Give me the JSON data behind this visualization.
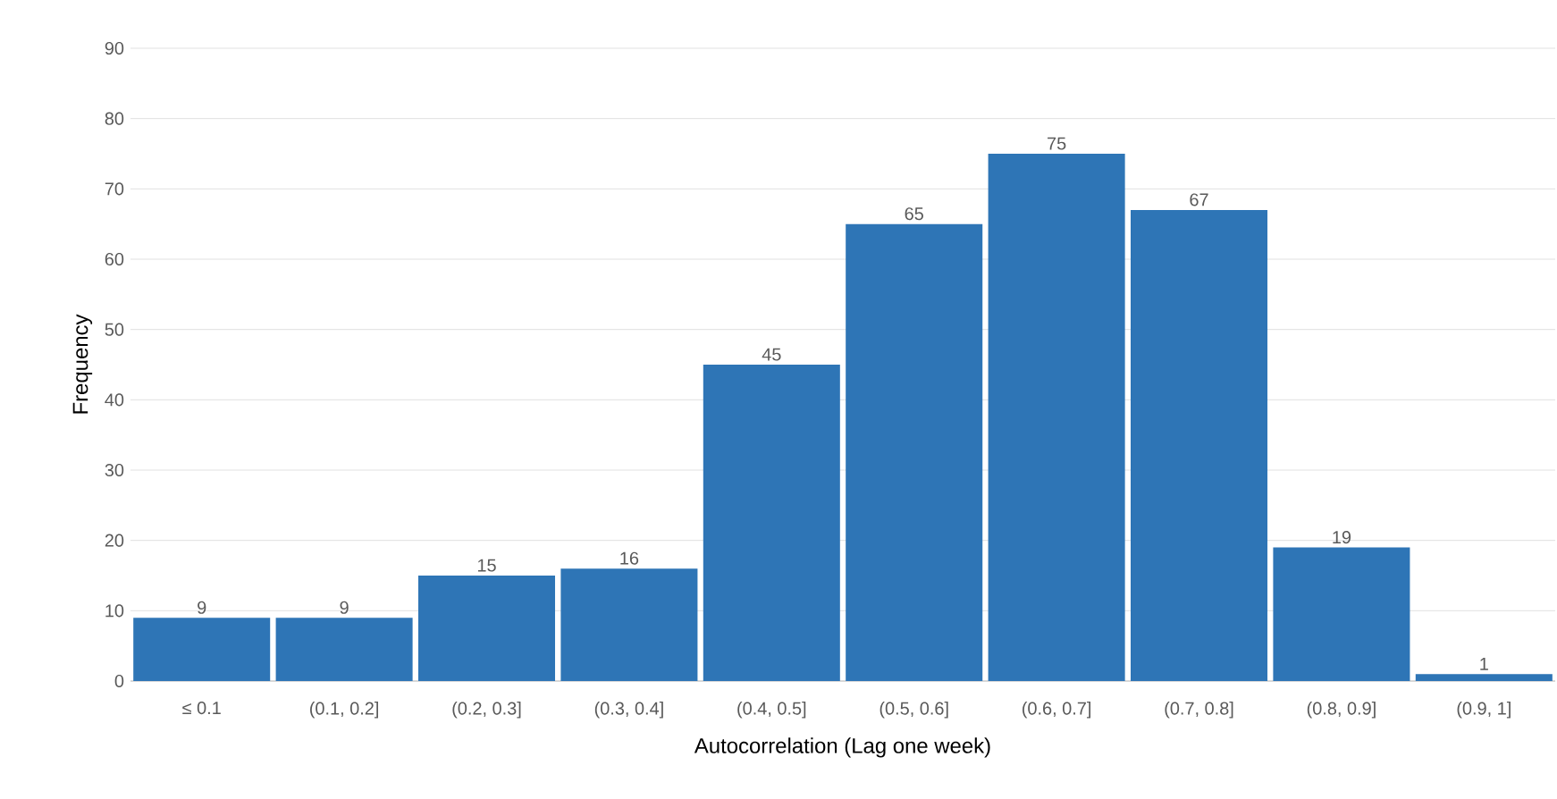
{
  "chart_data": {
    "type": "bar",
    "xlabel": "Autocorrelation (Lag one week)",
    "ylabel": "Frequency",
    "categories": [
      "≤ 0.1",
      "(0.1, 0.2]",
      "(0.2, 0.3]",
      "(0.3, 0.4]",
      "(0.4, 0.5]",
      "(0.5, 0.6]",
      "(0.6, 0.7]",
      "(0.7, 0.8]",
      "(0.8, 0.9]",
      "(0.9, 1]"
    ],
    "values": [
      9,
      9,
      15,
      16,
      45,
      65,
      75,
      67,
      19,
      1
    ],
    "color": "#2e75b6",
    "ylim": [
      0,
      90
    ],
    "yticks": [
      0,
      10,
      20,
      30,
      40,
      50,
      60,
      70,
      80,
      90
    ],
    "grid": "y",
    "data_labels": true
  }
}
